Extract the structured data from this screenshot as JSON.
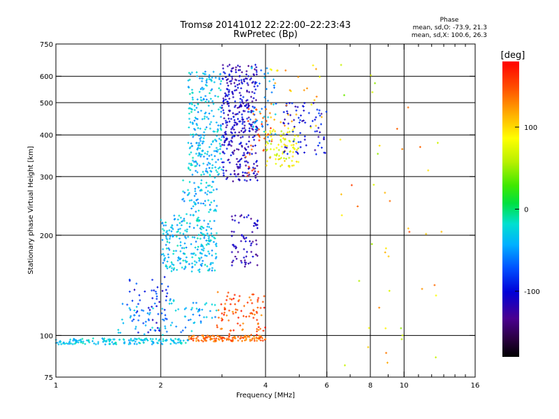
{
  "chart_data": {
    "type": "scatter",
    "title": "Tromsø 20141012 22:22:00–22:23:43",
    "subtitle": "RwPretec (Bp)",
    "xlabel": "Frequency [MHz]",
    "ylabel": "Stationary phase Virtual Height [km]",
    "x_scale": "log",
    "y_scale": "log",
    "xlim": [
      1,
      16
    ],
    "ylim": [
      75,
      750
    ],
    "x_ticks": [
      {
        "v": 1,
        "label": "1"
      },
      {
        "v": 2,
        "label": "2"
      },
      {
        "v": 4,
        "label": "4"
      },
      {
        "v": 6,
        "label": "6"
      },
      {
        "v": 8,
        "label": "8"
      },
      {
        "v": 10,
        "label": "10"
      },
      {
        "v": 16,
        "label": "16"
      }
    ],
    "x_gridlines": [
      2,
      4,
      6,
      8,
      10
    ],
    "x_minor_ticks": [
      3,
      5,
      7,
      9,
      11,
      12,
      13,
      14,
      15
    ],
    "y_ticks": [
      {
        "v": 75,
        "label": "75"
      },
      {
        "v": 100,
        "label": "100"
      },
      {
        "v": 200,
        "label": "200"
      },
      {
        "v": 300,
        "label": "300"
      },
      {
        "v": 400,
        "label": "400"
      },
      {
        "v": 500,
        "label": "500"
      },
      {
        "v": 600,
        "label": "600"
      },
      {
        "v": 750,
        "label": "750"
      }
    ],
    "y_gridlines": [
      100,
      200,
      300,
      400,
      500,
      600
    ],
    "stats": {
      "header": "Phase",
      "line_o": "mean, sd,O: -73.9, 21.3",
      "line_x": "mean, sd,X: 100.6, 26.3"
    },
    "colorbar": {
      "label": "[deg]",
      "range": [
        -180,
        180
      ],
      "ticks": [
        {
          "v": 100,
          "label": "100"
        },
        {
          "v": 0,
          "label": "0"
        },
        {
          "v": -100,
          "label": "-100"
        }
      ]
    },
    "clusters": [
      {
        "fmin": 1.0,
        "fmax": 2.4,
        "hmin": 94,
        "hmax": 98,
        "phase": -30,
        "spread": 20,
        "n": 160
      },
      {
        "fmin": 2.4,
        "fmax": 4.0,
        "hmin": 96,
        "hmax": 100,
        "phase": 140,
        "spread": 20,
        "n": 130
      },
      {
        "fmin": 1.6,
        "fmax": 2.1,
        "hmin": 102,
        "hmax": 150,
        "phase": -90,
        "spread": 25,
        "n": 55
      },
      {
        "fmin": 1.5,
        "fmax": 2.0,
        "hmin": 100,
        "hmax": 125,
        "phase": -40,
        "spread": 25,
        "n": 30
      },
      {
        "fmin": 2.0,
        "fmax": 2.9,
        "hmin": 100,
        "hmax": 130,
        "phase": -45,
        "spread": 25,
        "n": 55
      },
      {
        "fmin": 2.9,
        "fmax": 4.0,
        "hmin": 100,
        "hmax": 135,
        "phase": 150,
        "spread": 25,
        "n": 90
      },
      {
        "fmin": 2.0,
        "fmax": 2.9,
        "hmin": 155,
        "hmax": 230,
        "phase": -35,
        "spread": 25,
        "n": 240
      },
      {
        "fmin": 2.3,
        "fmax": 2.9,
        "hmin": 230,
        "hmax": 300,
        "phase": -40,
        "spread": 25,
        "n": 70
      },
      {
        "fmin": 2.4,
        "fmax": 3.0,
        "hmin": 300,
        "hmax": 620,
        "phase": -35,
        "spread": 25,
        "n": 260
      },
      {
        "fmin": 3.0,
        "fmax": 3.8,
        "hmin": 290,
        "hmax": 650,
        "phase": -110,
        "spread": 25,
        "n": 360
      },
      {
        "fmin": 3.2,
        "fmax": 3.8,
        "hmin": 160,
        "hmax": 230,
        "phase": -115,
        "spread": 20,
        "n": 70
      },
      {
        "fmin": 3.5,
        "fmax": 4.2,
        "hmin": 300,
        "hmax": 480,
        "phase": 150,
        "spread": 20,
        "n": 35
      },
      {
        "fmin": 3.6,
        "fmax": 4.3,
        "hmin": 380,
        "hmax": 640,
        "phase": -50,
        "spread": 25,
        "n": 45
      },
      {
        "fmin": 4.0,
        "fmax": 5.0,
        "hmin": 320,
        "hmax": 420,
        "phase": 80,
        "spread": 25,
        "n": 90
      },
      {
        "fmin": 4.5,
        "fmax": 6.0,
        "hmin": 350,
        "hmax": 500,
        "phase": -100,
        "spread": 25,
        "n": 75
      },
      {
        "fmin": 4.0,
        "fmax": 5.8,
        "hmin": 420,
        "hmax": 650,
        "phase": 105,
        "spread": 30,
        "n": 30
      },
      {
        "fmin": 6.5,
        "fmax": 13.0,
        "hmin": 80,
        "hmax": 660,
        "phase": 100,
        "spread": 60,
        "n": 45
      }
    ]
  }
}
